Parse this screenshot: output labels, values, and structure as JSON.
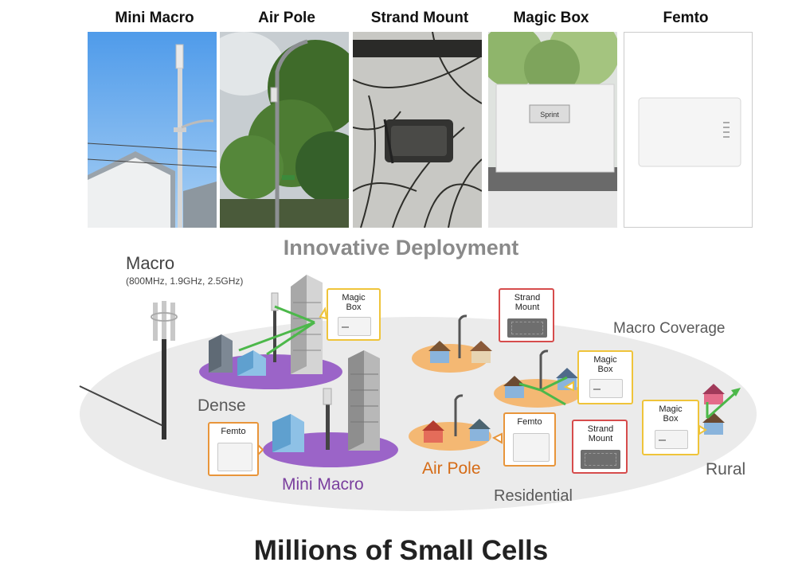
{
  "panels": [
    {
      "title": "Mini Macro"
    },
    {
      "title": "Air Pole"
    },
    {
      "title": "Strand Mount"
    },
    {
      "title": "Magic Box"
    },
    {
      "title": "Femto"
    }
  ],
  "magic_box_photo_label": "Sprint",
  "headline": "Innovative Deployment",
  "macro": {
    "title": "Macro",
    "bands": "(800MHz, 1.9GHz, 2.5GHz)"
  },
  "zones": {
    "dense": "Dense",
    "mini_macro": "Mini Macro",
    "air_pole": "Air Pole",
    "residential": "Residential",
    "rural": "Rural",
    "macro_coverage": "Macro Coverage"
  },
  "callouts": {
    "magic_box_dense": "Magic Box",
    "femto_dense": "Femto",
    "strand_mount_top": "Strand Mount",
    "magic_box_residential": "Magic Box",
    "femto_residential": "Femto",
    "strand_mount_bottom": "Strand Mount",
    "magic_box_rural": "Magic Box"
  },
  "bottom_title": "Millions of Small Cells",
  "colors": {
    "dense_zone": "#9b64c8",
    "mini_macro_text": "#7a3f9e",
    "air_pole_text": "#d56b16",
    "residential_zone": "#f4b873",
    "callout_yellow": "#efc43a",
    "callout_orange": "#e8953a",
    "callout_red": "#d64c4c",
    "link_green": "#4cb84a",
    "coverage_ellipse": "#e9e9e9"
  }
}
